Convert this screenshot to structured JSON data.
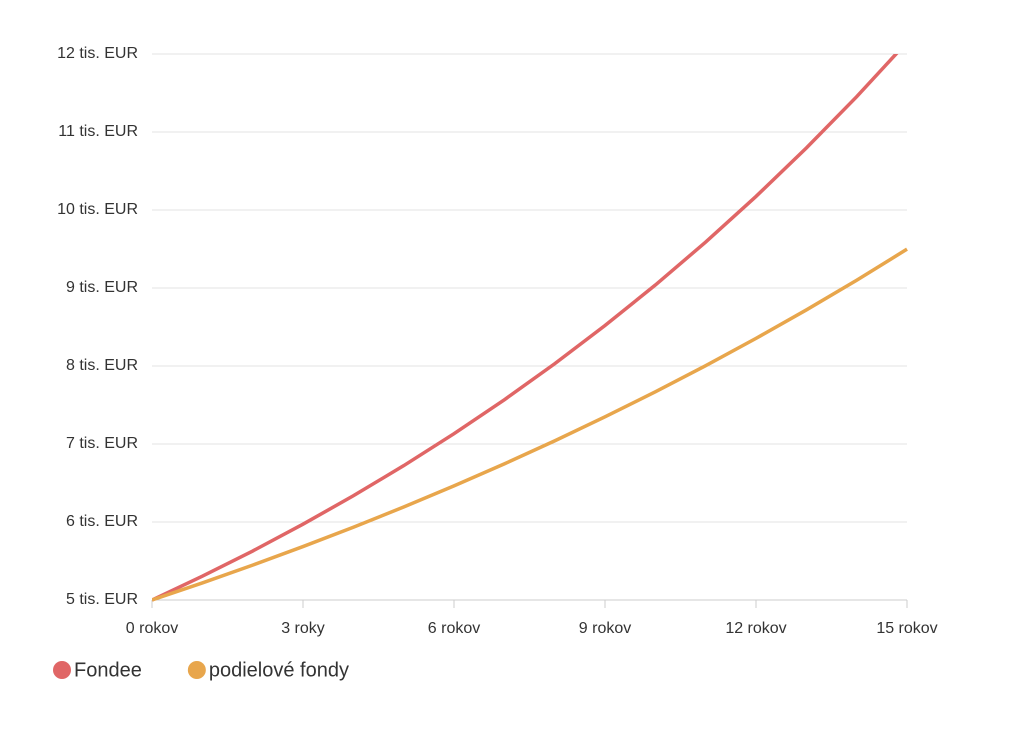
{
  "chart_data": {
    "type": "line",
    "x": [
      0,
      1,
      2,
      3,
      4,
      5,
      6,
      7,
      8,
      9,
      10,
      11,
      12,
      13,
      14,
      15
    ],
    "series": [
      {
        "name": "Fondee",
        "color": "#e06666",
        "values": [
          5,
          5.305,
          5.628,
          5.972,
          6.336,
          6.722,
          7.132,
          7.567,
          8.029,
          8.519,
          9.038,
          9.589,
          10.174,
          10.795,
          11.453,
          12.152
        ]
      },
      {
        "name": "podielové fondy",
        "color": "#e8a64c",
        "values": [
          5,
          5.219,
          5.447,
          5.685,
          5.933,
          6.192,
          6.463,
          6.745,
          7.04,
          7.348,
          7.669,
          8.004,
          8.354,
          8.719,
          9.1,
          9.498
        ]
      }
    ],
    "xlim": [
      0,
      15
    ],
    "xticks": [
      {
        "value": 0,
        "label": "0 rokov"
      },
      {
        "value": 3,
        "label": "3 roky"
      },
      {
        "value": 6,
        "label": "6 rokov"
      },
      {
        "value": 9,
        "label": "9 rokov"
      },
      {
        "value": 12,
        "label": "12 rokov"
      },
      {
        "value": 15,
        "label": "15 rokov"
      }
    ],
    "ylim": [
      5,
      12
    ],
    "yticks": [
      {
        "value": 5,
        "label": "5 tis. EUR"
      },
      {
        "value": 6,
        "label": "6 tis. EUR"
      },
      {
        "value": 7,
        "label": "7 tis. EUR"
      },
      {
        "value": 8,
        "label": "8 tis. EUR"
      },
      {
        "value": 9,
        "label": "9 tis. EUR"
      },
      {
        "value": 10,
        "label": "10 tis. EUR"
      },
      {
        "value": 11,
        "label": "11 tis. EUR"
      },
      {
        "value": 12,
        "label": "12 tis. EUR"
      }
    ],
    "grid": true,
    "legend": "bottom-left"
  }
}
